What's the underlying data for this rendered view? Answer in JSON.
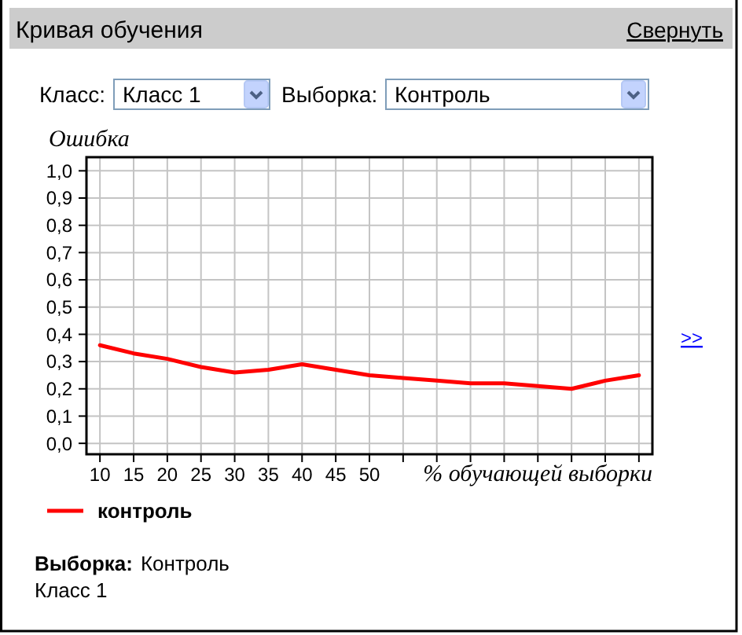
{
  "chart_data": {
    "type": "line",
    "title": "Кривая обучения",
    "xlabel": "% обучающей выборки",
    "ylabel": "Ошибка",
    "x": [
      10,
      15,
      20,
      25,
      30,
      35,
      40,
      45,
      50,
      55,
      60,
      65,
      70,
      75,
      80,
      85,
      90
    ],
    "series": [
      {
        "name": "контроль",
        "color": "#ff0000",
        "values": [
          0.36,
          0.33,
          0.31,
          0.28,
          0.26,
          0.27,
          0.29,
          0.27,
          0.25,
          0.24,
          0.23,
          0.22,
          0.22,
          0.21,
          0.2,
          0.23,
          0.25
        ]
      }
    ],
    "xlim": [
      8,
      92
    ],
    "ylim": [
      -0.04,
      1.05
    ],
    "xticks": [
      10,
      15,
      20,
      25,
      30,
      35,
      40,
      45,
      50,
      {
        "value": 55,
        "label": null
      },
      {
        "value": 60,
        "label": null
      },
      {
        "value": 65,
        "label": null
      },
      {
        "value": 70,
        "label": null
      },
      {
        "value": 75,
        "label": null
      },
      {
        "value": 80,
        "label": null
      },
      {
        "value": 85,
        "label": null
      },
      {
        "value": 90,
        "label": null
      }
    ],
    "yticks": [
      {
        "value": 0,
        "label": "0,0"
      },
      {
        "value": 0.1,
        "label": "0,1"
      },
      {
        "value": 0.2,
        "label": "0,2"
      },
      {
        "value": 0.3,
        "label": "0,3"
      },
      {
        "value": 0.4,
        "label": "0,4"
      },
      {
        "value": 0.5,
        "label": "0,5"
      },
      {
        "value": 0.6,
        "label": "0,6"
      },
      {
        "value": 0.7,
        "label": "0,7"
      },
      {
        "value": 0.8,
        "label": "0,8"
      },
      {
        "value": 0.9,
        "label": "0,9"
      },
      {
        "value": 1,
        "label": "1,0"
      }
    ],
    "grid": true,
    "legend": "bottom left",
    "line_style": "solid",
    "annotations": [
      "Свернуть",
      "Класс:",
      "Класс 1",
      "Выборка:",
      "Контроль",
      ">>",
      "Выборка:",
      "Контроль",
      "Класс 1"
    ]
  }
}
